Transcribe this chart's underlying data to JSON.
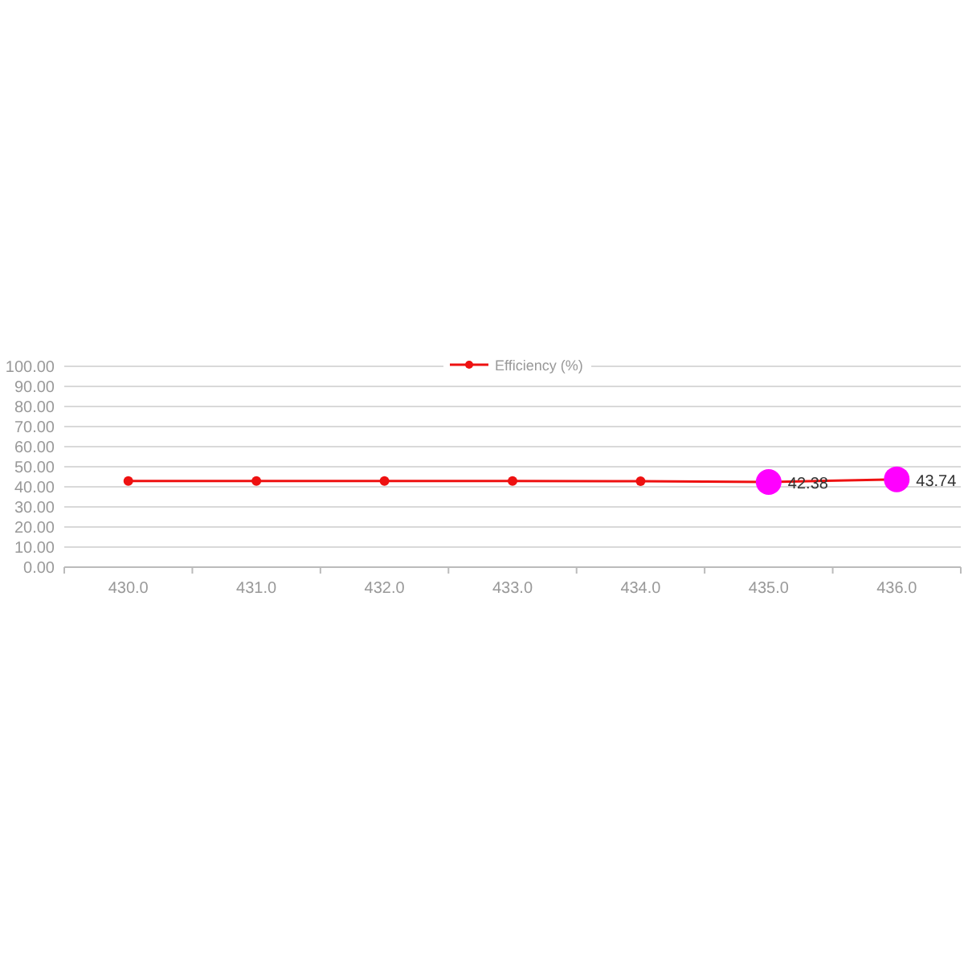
{
  "chart_data": {
    "type": "line",
    "categories": [
      "430.0",
      "431.0",
      "432.0",
      "433.0",
      "434.0",
      "435.0",
      "436.0"
    ],
    "series": [
      {
        "name": "Efficiency (%)",
        "color": "#ee1111",
        "colors": [
          "#ee1111",
          "#ee1111",
          "#ee1111",
          "#ee1111",
          "#ee1111",
          "#ff00ff",
          "#ff00ff"
        ],
        "values": [
          42.9,
          42.9,
          42.9,
          42.9,
          42.8,
          42.38,
          43.74
        ],
        "value_labels": [
          null,
          null,
          null,
          null,
          null,
          "42.38",
          "43.74"
        ]
      }
    ],
    "ylim": [
      0,
      100
    ],
    "yticks": [
      {
        "value": 0,
        "label": "0.00"
      },
      {
        "value": 10,
        "label": "10.00"
      },
      {
        "value": 20,
        "label": "20.00"
      },
      {
        "value": 30,
        "label": "30.00"
      },
      {
        "value": 40,
        "label": "40.00"
      },
      {
        "value": 50,
        "label": "50.00"
      },
      {
        "value": 60,
        "label": "60.00"
      },
      {
        "value": 70,
        "label": "70.00"
      },
      {
        "value": 80,
        "label": "80.00"
      },
      {
        "value": 90,
        "label": "90.00"
      },
      {
        "value": 100,
        "label": "100.00"
      }
    ],
    "grid": "y",
    "legend": "top",
    "marker": "circle"
  }
}
